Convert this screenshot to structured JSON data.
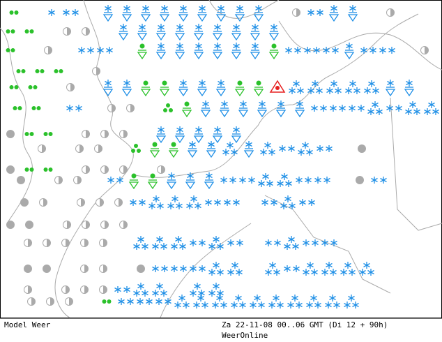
{
  "footer": {
    "model": "Model Weer",
    "time": "Za 22-11-08 00..06 GMT (Di 12 + 90h)",
    "credit": "WeerOnline"
  }
}
